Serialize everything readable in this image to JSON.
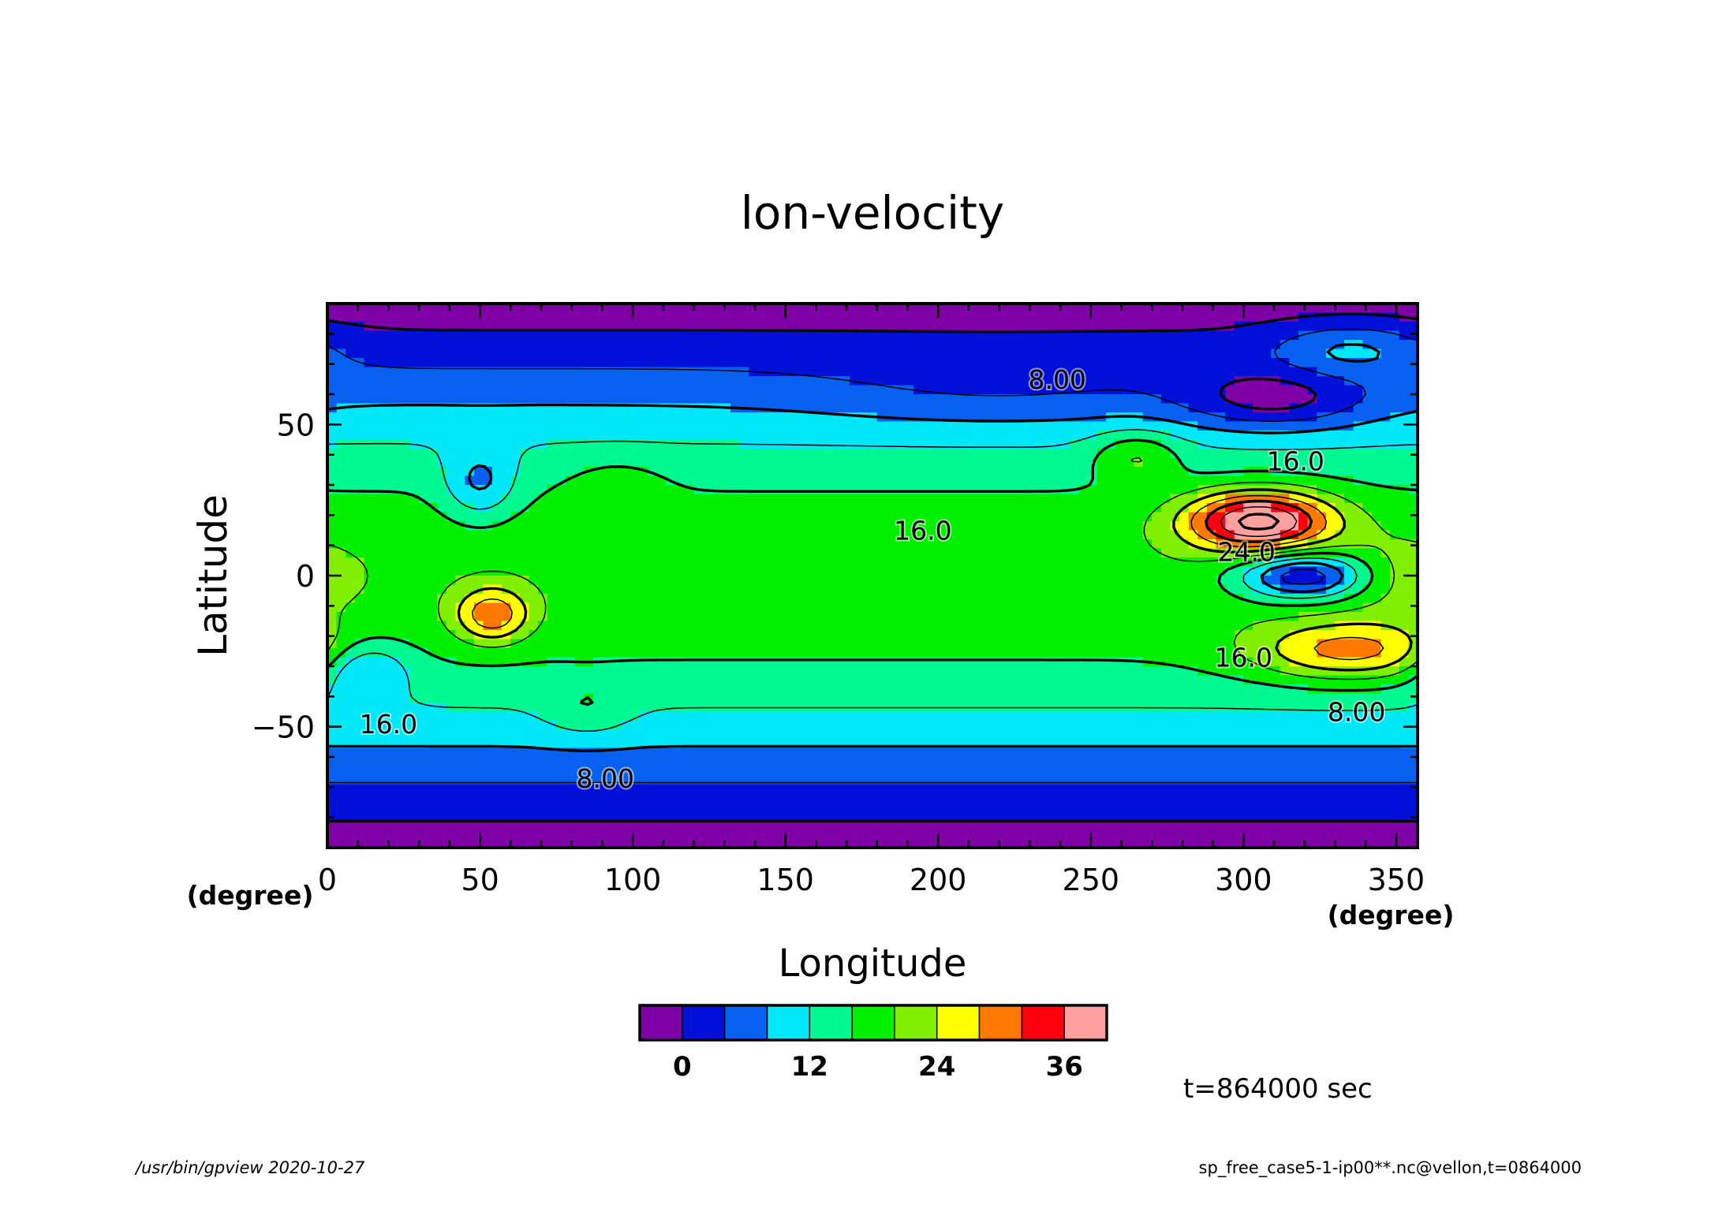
{
  "chart_data": {
    "type": "heatmap",
    "title": "lon-velocity",
    "xlabel": "Longitude",
    "ylabel": "Latitude",
    "x_unit": "(degree)",
    "y_unit": "(degree)",
    "xlim": [
      0,
      357
    ],
    "ylim": [
      -90,
      90
    ],
    "x_ticks": [
      0,
      50,
      100,
      150,
      200,
      250,
      300,
      350
    ],
    "y_ticks": [
      -50,
      0,
      50
    ],
    "contour_labels": [
      {
        "text": "8.00",
        "lon": 239,
        "lat": 65
      },
      {
        "text": "16.0",
        "lon": 195,
        "lat": 15
      },
      {
        "text": "16.0",
        "lon": 317,
        "lat": 38
      },
      {
        "text": "24.0",
        "lon": 301,
        "lat": 8
      },
      {
        "text": "16.0",
        "lon": 300,
        "lat": -27
      },
      {
        "text": "8.00",
        "lon": 337,
        "lat": -45
      },
      {
        "text": "16.0",
        "lon": 20,
        "lat": -49
      },
      {
        "text": "8.00",
        "lon": 91,
        "lat": -67
      }
    ],
    "colorbar": {
      "levels": [
        -4,
        0,
        4,
        8,
        12,
        16,
        20,
        24,
        28,
        32,
        36,
        40
      ],
      "tick_labels": [
        "0",
        "12",
        "24",
        "36"
      ],
      "tick_values": [
        0,
        12,
        24,
        36
      ],
      "colors": [
        "#8000a8",
        "#0010d8",
        "#0860f0",
        "#00e8f8",
        "#00f890",
        "#00f000",
        "#80f000",
        "#ffff00",
        "#ff7800",
        "#ff0010",
        "#ffa0a0"
      ]
    },
    "features": [
      {
        "name": "polar-band-north",
        "band": [
          -4,
          4
        ]
      },
      {
        "name": "polar-band-south",
        "band": [
          0,
          8
        ]
      },
      {
        "name": "positive-jet",
        "center": [
          305,
          18
        ],
        "peak": 38
      },
      {
        "name": "negative-cell",
        "center": [
          318,
          0
        ],
        "min": -2
      },
      {
        "name": "tropical-max",
        "center": [
          54,
          -13
        ],
        "peak": 32
      },
      {
        "name": "south-east-max",
        "center": [
          335,
          -25
        ],
        "peak": 30
      },
      {
        "name": "north-min",
        "center": [
          305,
          59
        ],
        "min": 0
      }
    ]
  },
  "annotations": {
    "time": "t=864000 sec",
    "footer_left": "/usr/bin/gpview   2020-10-27",
    "footer_right": "sp_free_case5-1-ip00**.nc@vellon,t=0864000"
  }
}
